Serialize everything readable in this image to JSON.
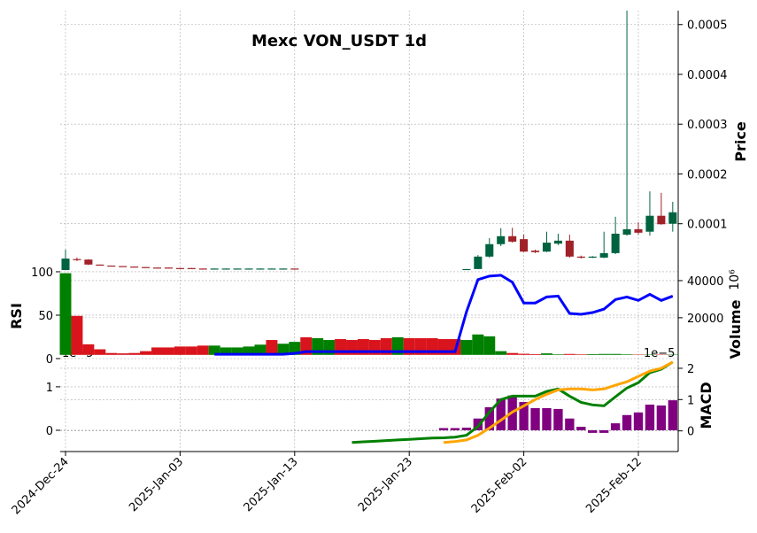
{
  "chart_data": {
    "type": "candlestick",
    "title": "Mexc VON_USDT 1d",
    "categories": [
      "2024-Dec-24",
      null,
      null,
      null,
      null,
      null,
      null,
      null,
      null,
      null,
      "2025-Jan-03",
      null,
      null,
      null,
      null,
      null,
      null,
      null,
      null,
      null,
      "2025-Jan-13",
      null,
      null,
      null,
      null,
      null,
      null,
      null,
      null,
      null,
      "2025-Jan-23",
      null,
      null,
      null,
      null,
      null,
      null,
      null,
      null,
      null,
      "2025-Feb-02",
      null,
      null,
      null,
      null,
      null,
      null,
      null,
      null,
      null,
      "2025-Feb-12",
      null,
      null,
      null
    ],
    "candles": {
      "open": [
        7e-06,
        2.9e-05,
        2.8e-05,
        1.8e-05,
        1.6e-05,
        1.5e-05,
        1.4e-05,
        1.3e-05,
        1.2e-05,
        1.2e-05,
        1.1e-05,
        1.1e-05,
        1e-05,
        9e-06,
        9e-06,
        9e-06,
        9e-06,
        9e-06,
        9e-06,
        9e-06,
        1e-05,
        null,
        null,
        null,
        null,
        null,
        null,
        null,
        null,
        null,
        null,
        null,
        null,
        null,
        null,
        8e-06,
        9e-06,
        3.4e-05,
        5.9e-05,
        7.5e-05,
        6.9e-05,
        4.6e-05,
        4.4e-05,
        6e-05,
        6.6e-05,
        3.4e-05,
        3.2e-05,
        3.2e-05,
        4.1e-05,
        7.8e-05,
        8.9e-05,
        8.4e-05,
        0.000116,
        0.0001
      ],
      "high": [
        4.8e-05,
        3.2e-05,
        2.9e-05,
        1.8e-05,
        1.6e-05,
        1.5e-05,
        1.4e-05,
        1.3e-05,
        1.2e-05,
        1.2e-05,
        1.1e-05,
        1.1e-05,
        1e-05,
        1e-05,
        1e-05,
        1e-05,
        1e-05,
        1e-05,
        1e-05,
        1e-05,
        1e-05,
        null,
        null,
        null,
        null,
        null,
        null,
        null,
        null,
        null,
        null,
        null,
        null,
        null,
        null,
        9e-06,
        3.7e-05,
        7.1e-05,
        9.1e-05,
        9.2e-05,
        7.8e-05,
        4.8e-05,
        8.4e-05,
        8e-05,
        7.8e-05,
        3.6e-05,
        3.5e-05,
        8.4e-05,
        0.000114,
        0.000528,
        0.000103,
        0.000165,
        0.000162,
        0.000144
      ],
      "low": [
        7e-06,
        2.5e-05,
        1.7e-05,
        1.6e-05,
        1.5e-05,
        1.4e-05,
        1.3e-05,
        1.2e-05,
        1.1e-05,
        1.1e-05,
        1e-05,
        1e-05,
        9e-06,
        9e-06,
        9e-06,
        9e-06,
        9e-06,
        9e-06,
        9e-06,
        9e-06,
        8e-06,
        null,
        null,
        null,
        null,
        null,
        null,
        null,
        null,
        null,
        null,
        null,
        null,
        null,
        null,
        8e-06,
        9e-06,
        3.2e-05,
        5.5e-05,
        6.2e-05,
        4.3e-05,
        4.1e-05,
        4.3e-05,
        5.7e-05,
        3.2e-05,
        3e-05,
        3.1e-05,
        3.1e-05,
        3.9e-05,
        7.6e-05,
        7.8e-05,
        7.6e-05,
        9.8e-05,
        8.4e-05
      ],
      "close": [
        3e-05,
        2.7e-05,
        1.8e-05,
        1.7e-05,
        1.5e-05,
        1.4e-05,
        1.3e-05,
        1.2e-05,
        1.1e-05,
        1.1e-05,
        1e-05,
        1e-05,
        9e-06,
        1e-05,
        1e-05,
        1e-05,
        1e-05,
        1e-05,
        1e-05,
        1e-05,
        8e-06,
        null,
        null,
        null,
        null,
        null,
        null,
        null,
        null,
        null,
        null,
        null,
        null,
        null,
        null,
        9e-06,
        3.4e-05,
        5.9e-05,
        7.5e-05,
        6.4e-05,
        4.4e-05,
        4.3e-05,
        6.2e-05,
        6.6e-05,
        3.4e-05,
        3.2e-05,
        3.4e-05,
        4.1e-05,
        8e-05,
        8.9e-05,
        8.2e-05,
        0.000116,
        9.9e-05,
        0.000123
      ],
      "up_color": "#006340",
      "down_color": "#a02128"
    },
    "ylim": [
      7e-06,
      0.000528
    ],
    "yticks": [
      0.0001,
      0.0002,
      0.0003,
      0.0004,
      0.0005
    ],
    "ylabel": "Price",
    "volume": {
      "values": [
        44000,
        21000,
        5700,
        3000,
        1000,
        800,
        1000,
        2000,
        4000,
        4000,
        4500,
        4500,
        5000,
        5000,
        4000,
        4000,
        4500,
        5500,
        8000,
        6000,
        7000,
        9500,
        9000,
        8000,
        8500,
        8000,
        8500,
        8000,
        9000,
        9500,
        9000,
        9000,
        9000,
        8500,
        8500,
        8000,
        11000,
        10000,
        2000,
        1000,
        600,
        400,
        800,
        300,
        500,
        300,
        400,
        500,
        500,
        300,
        200,
        200,
        200,
        200
      ],
      "colors": [
        "#008000",
        "#d9141c",
        "#d9141c",
        "#d9141c",
        "#d9141c",
        "#d9141c",
        "#d9141c",
        "#d9141c",
        "#d9141c",
        "#d9141c",
        "#d9141c",
        "#d9141c",
        "#d9141c",
        "#008000",
        "#008000",
        "#008000",
        "#008000",
        "#008000",
        "#d9141c",
        "#008000",
        "#008000",
        "#d9141c",
        "#008000",
        "#008000",
        "#d9141c",
        "#d9141c",
        "#d9141c",
        "#d9141c",
        "#d9141c",
        "#008000",
        "#d9141c",
        "#d9141c",
        "#d9141c",
        "#d9141c",
        "#d9141c",
        "#008000",
        "#008000",
        "#008000",
        "#008000",
        "#d9141c",
        "#d9141c",
        "#d9141c",
        "#008000",
        "#008000",
        "#d9141c",
        "#d9141c",
        "#008000",
        "#008000",
        "#008000",
        "#008000",
        "#d9141c",
        "#008000",
        "#d9141c",
        "#008000"
      ],
      "ylim": [
        -2000,
        45700
      ],
      "yticks": [
        20000,
        40000
      ],
      "label": "Volume",
      "offset": "10⁶"
    },
    "rsi": {
      "values": [
        null,
        null,
        null,
        null,
        null,
        null,
        null,
        null,
        null,
        null,
        null,
        null,
        null,
        5,
        5,
        5,
        5,
        5,
        5,
        5,
        6,
        8,
        8,
        8,
        8,
        8,
        8,
        8,
        8,
        8,
        8,
        8,
        8,
        8,
        8,
        54,
        91,
        95,
        96,
        88,
        64,
        64,
        71,
        72,
        52,
        51,
        53,
        57,
        68,
        71,
        67,
        74,
        67,
        72
      ],
      "color": "#0000ff",
      "ylim": [
        0,
        102
      ],
      "yticks": [
        0,
        50,
        100
      ],
      "label": "RSI"
    },
    "macd": {
      "hist": [
        null,
        null,
        null,
        null,
        null,
        null,
        null,
        null,
        null,
        null,
        null,
        null,
        null,
        null,
        null,
        null,
        null,
        null,
        null,
        null,
        null,
        null,
        null,
        null,
        null,
        null,
        null,
        null,
        null,
        null,
        null,
        null,
        null,
        0.05,
        0.05,
        0.06,
        0.27,
        0.53,
        0.73,
        0.8,
        0.65,
        0.51,
        0.51,
        0.49,
        0.27,
        0.08,
        -0.06,
        -0.06,
        0.16,
        0.35,
        0.41,
        0.59,
        0.57,
        0.69
      ],
      "hist_color": "#800080",
      "ylim": [
        -0.49,
        1.65
      ],
      "yticks": [
        0,
        1
      ],
      "offset": "1e−5",
      "line": [
        null,
        null,
        null,
        null,
        null,
        null,
        null,
        null,
        null,
        null,
        null,
        null,
        null,
        null,
        null,
        null,
        null,
        null,
        null,
        null,
        null,
        null,
        null,
        null,
        null,
        -0.37,
        -0.35,
        -0.33,
        -0.31,
        -0.29,
        -0.27,
        -0.25,
        -0.23,
        -0.22,
        -0.2,
        -0.14,
        0.14,
        0.6,
        1.0,
        1.11,
        1.11,
        1.11,
        1.26,
        1.34,
        1.11,
        0.91,
        0.83,
        0.8,
        1.09,
        1.37,
        1.54,
        1.86,
        1.97,
        2.2
      ],
      "signal": [
        null,
        null,
        null,
        null,
        null,
        null,
        null,
        null,
        null,
        null,
        null,
        null,
        null,
        null,
        null,
        null,
        null,
        null,
        null,
        null,
        null,
        null,
        null,
        null,
        null,
        null,
        null,
        null,
        null,
        null,
        null,
        null,
        null,
        -0.37,
        -0.34,
        -0.29,
        -0.14,
        0.09,
        0.34,
        0.6,
        0.8,
        1.0,
        1.17,
        1.31,
        1.34,
        1.34,
        1.31,
        1.34,
        1.46,
        1.57,
        1.74,
        1.91,
        2.0,
        2.2
      ],
      "line_color": "#008000",
      "signal_color": "#ffa500",
      "y2lim": [
        -0.66,
        2.31
      ],
      "y2ticks": [
        0,
        1,
        2
      ],
      "y2offset": "1e−5",
      "label": "MACD"
    },
    "grid": true
  }
}
